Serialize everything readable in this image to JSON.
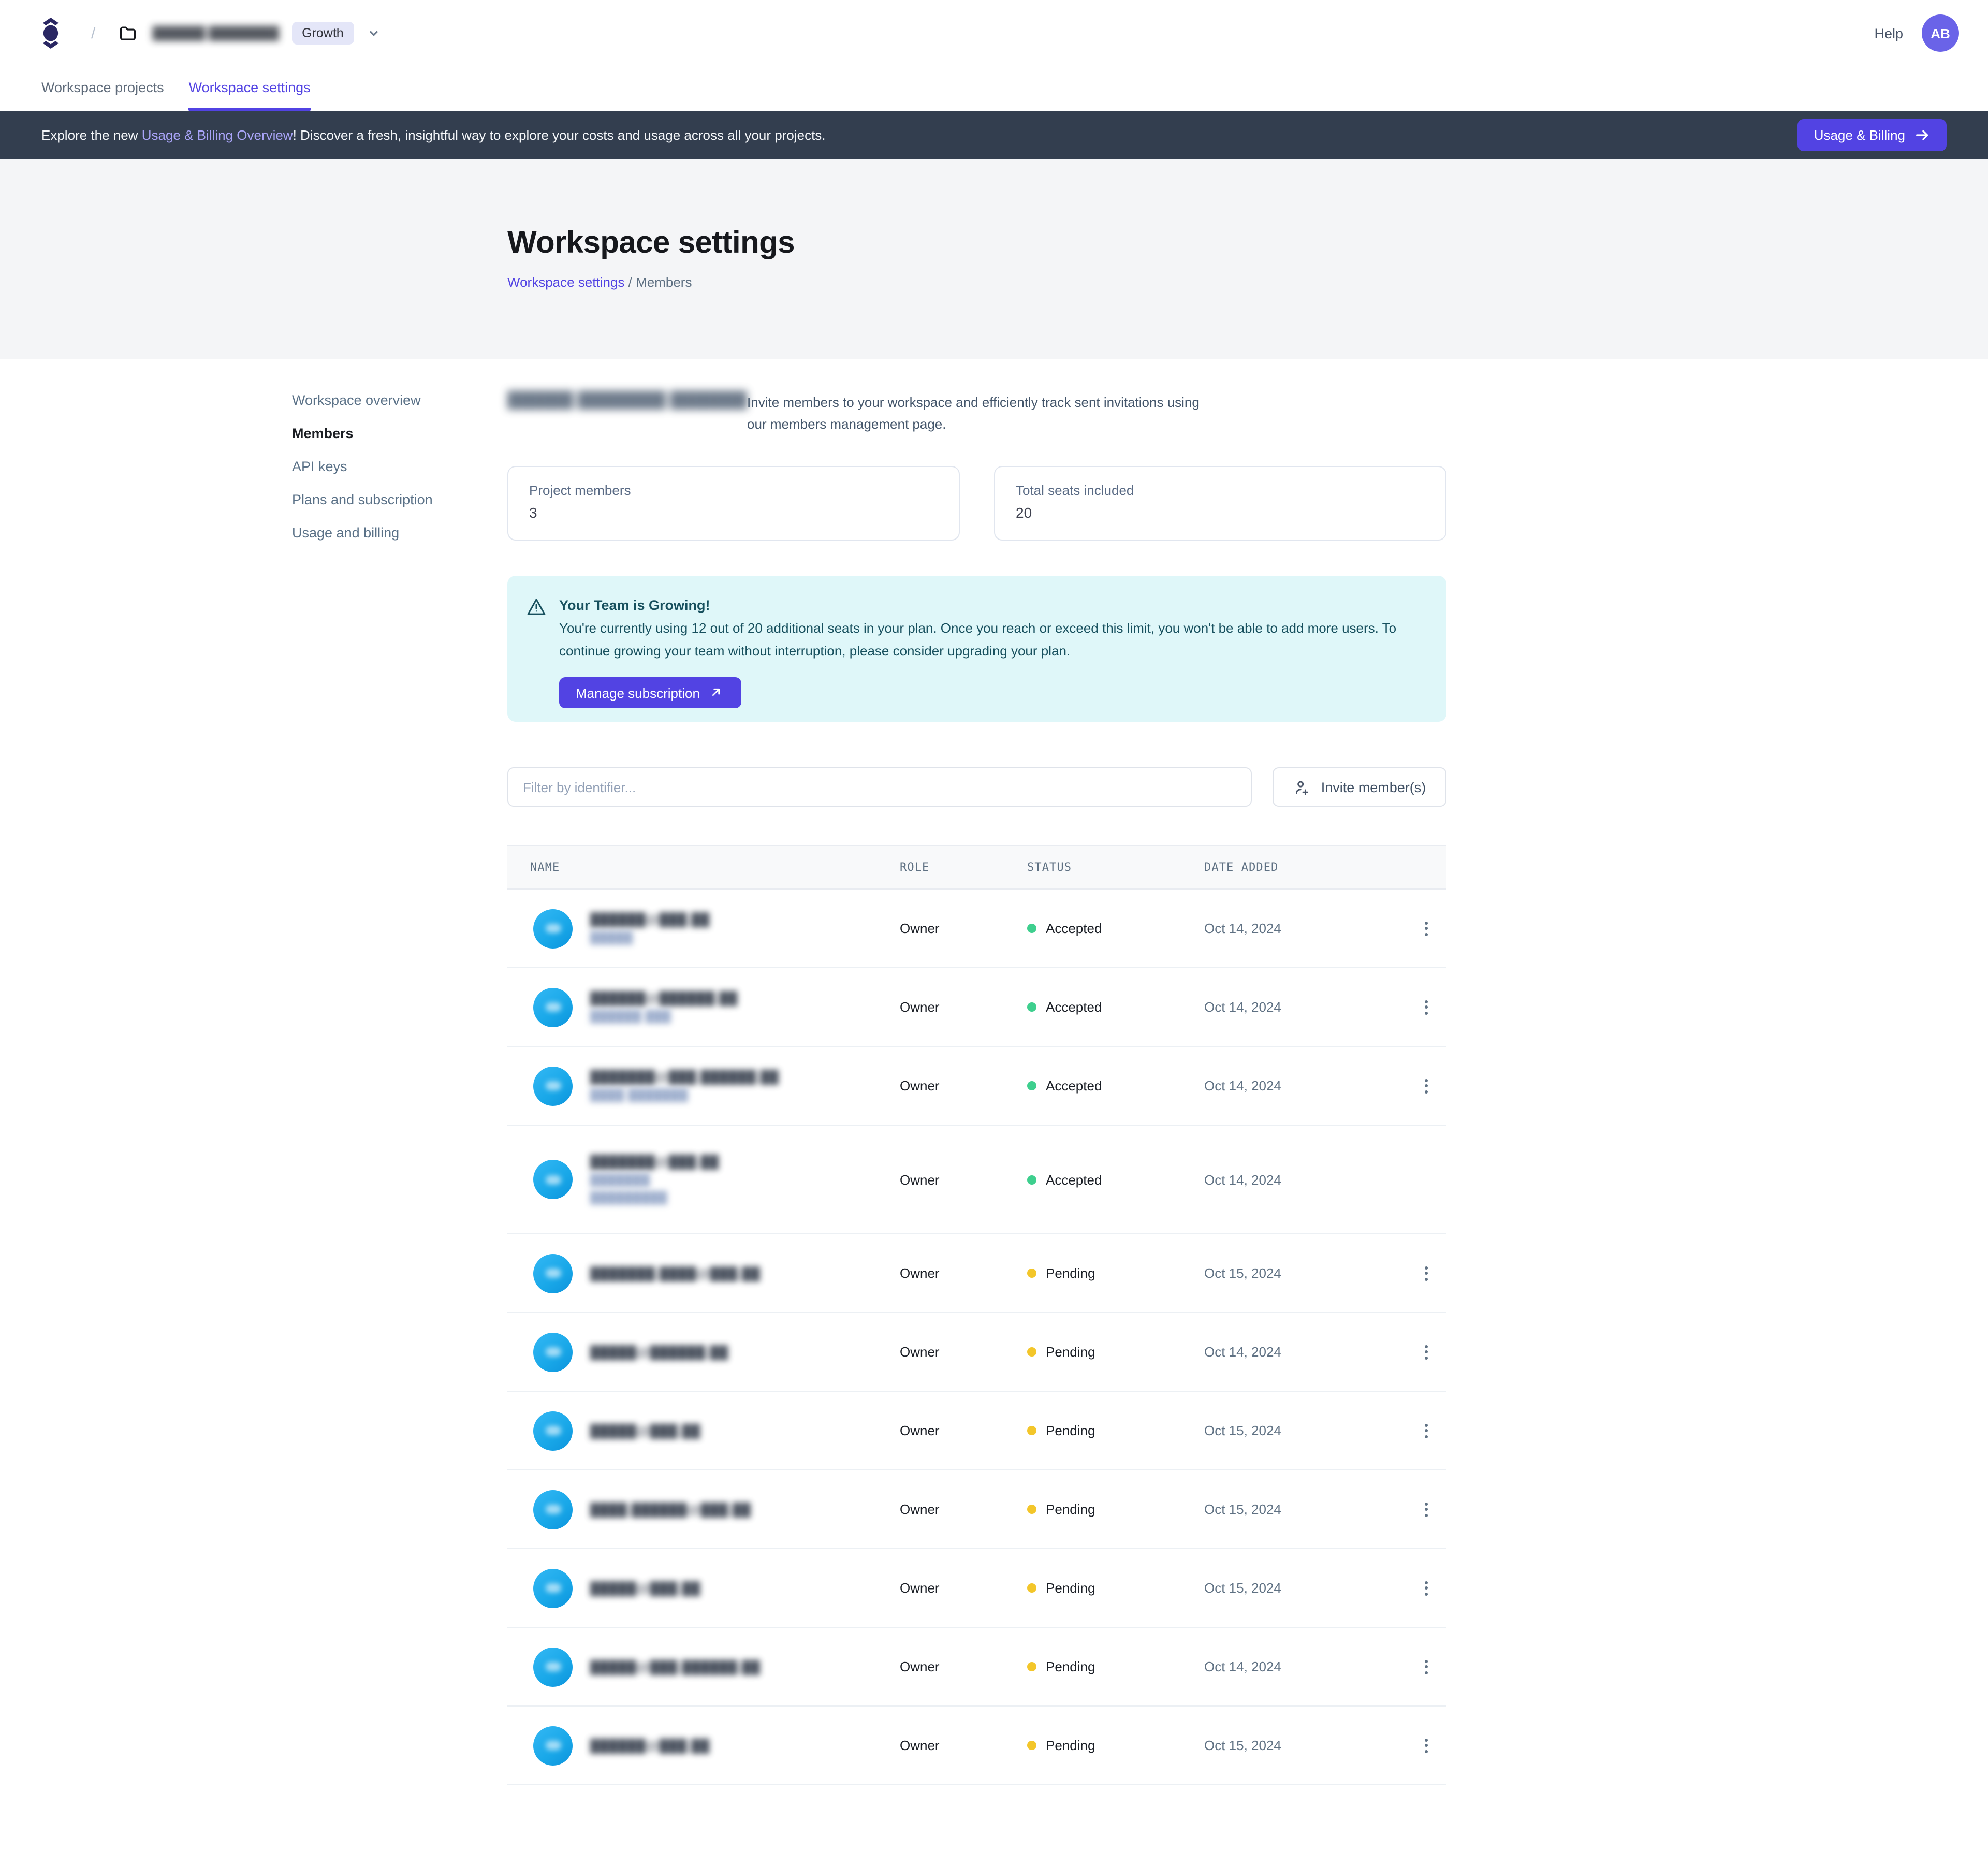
{
  "colors": {
    "accent": "#5243E3",
    "banner_bg": "#333E4F",
    "banner_link": "#A9A4F8",
    "badge_bg": "#E4E6F8",
    "alert_bg": "#DFF7F9",
    "alert_text": "#17505E",
    "dot_accepted": "#3ECF8E",
    "dot_pending": "#F3C62A",
    "avatar_user_bg": "#6A63E8",
    "avatar_member_bg": "#18A7E8"
  },
  "header": {
    "breadcrumb_separator": "/",
    "project_name_redacted": "██████ ████████",
    "plan_badge": "Growth",
    "help_label": "Help",
    "avatar_initials": "AB"
  },
  "tabs": [
    {
      "label": "Workspace projects",
      "active": false
    },
    {
      "label": "Workspace settings",
      "active": true
    }
  ],
  "banner": {
    "text_prefix": "Explore the new ",
    "link_text": "Usage & Billing Overview",
    "text_suffix": "! Discover a fresh, insightful way to explore your costs and usage across all your projects.",
    "button_label": "Usage & Billing"
  },
  "hero": {
    "title": "Workspace settings",
    "breadcrumb_link": "Workspace settings",
    "breadcrumb_divider": " / ",
    "breadcrumb_current": "Members"
  },
  "sidebar": {
    "items": [
      {
        "label": "Workspace overview",
        "active": false
      },
      {
        "label": "Members",
        "active": true
      },
      {
        "label": "API keys",
        "active": false
      },
      {
        "label": "Plans and subscription",
        "active": false
      },
      {
        "label": "Usage and billing",
        "active": false
      }
    ]
  },
  "members": {
    "heading_redacted": "██████ ████████ ███████",
    "invite_description": "Invite members to your workspace and efficiently track sent invitations using our members management page.",
    "stats": [
      {
        "label": "Project members",
        "value": "3"
      },
      {
        "label": "Total seats included",
        "value": "20"
      }
    ],
    "alert": {
      "title": "Your Team is Growing!",
      "body": "You're currently using 12 out of 20 additional seats in your plan. Once you reach or exceed this limit, you won't be able to add more users. To continue growing your team without interruption, please consider upgrading your plan.",
      "button_label": "Manage subscription"
    },
    "filter_placeholder": "Filter by identifier...",
    "invite_button": "Invite member(s)",
    "table": {
      "columns": [
        "NAME",
        "ROLE",
        "STATUS",
        "DATE ADDED"
      ],
      "rows": [
        {
          "email_redacted": "██████@███.██",
          "name_lines_redacted": [
            "█████"
          ],
          "role": "Owner",
          "status": "Accepted",
          "status_kind": "accepted",
          "date_added": "Oct 14, 2024",
          "has_menu": true,
          "tall": false
        },
        {
          "email_redacted": "██████@██████.██",
          "name_lines_redacted": [
            "██████ ███"
          ],
          "role": "Owner",
          "status": "Accepted",
          "status_kind": "accepted",
          "date_added": "Oct 14, 2024",
          "has_menu": true,
          "tall": false
        },
        {
          "email_redacted": "███████@███.██████.██",
          "name_lines_redacted": [
            "████ ███████"
          ],
          "role": "Owner",
          "status": "Accepted",
          "status_kind": "accepted",
          "date_added": "Oct 14, 2024",
          "has_menu": true,
          "tall": false
        },
        {
          "email_redacted": "███████@███.██",
          "name_lines_redacted": [
            "███████",
            "█████████"
          ],
          "role": "Owner",
          "status": "Accepted",
          "status_kind": "accepted",
          "date_added": "Oct 14, 2024",
          "has_menu": false,
          "tall": true
        },
        {
          "email_redacted": "███████.████@███.██",
          "name_lines_redacted": [],
          "role": "Owner",
          "status": "Pending",
          "status_kind": "pending",
          "date_added": "Oct 15, 2024",
          "has_menu": true,
          "tall": false
        },
        {
          "email_redacted": "█████@██████.██",
          "name_lines_redacted": [],
          "role": "Owner",
          "status": "Pending",
          "status_kind": "pending",
          "date_added": "Oct 14, 2024",
          "has_menu": true,
          "tall": false
        },
        {
          "email_redacted": "█████@███.██",
          "name_lines_redacted": [],
          "role": "Owner",
          "status": "Pending",
          "status_kind": "pending",
          "date_added": "Oct 15, 2024",
          "has_menu": true,
          "tall": false
        },
        {
          "email_redacted": "████.██████@███.██",
          "name_lines_redacted": [],
          "role": "Owner",
          "status": "Pending",
          "status_kind": "pending",
          "date_added": "Oct 15, 2024",
          "has_menu": true,
          "tall": false
        },
        {
          "email_redacted": "█████@███.██",
          "name_lines_redacted": [],
          "role": "Owner",
          "status": "Pending",
          "status_kind": "pending",
          "date_added": "Oct 15, 2024",
          "has_menu": true,
          "tall": false
        },
        {
          "email_redacted": "█████@███.██████.██",
          "name_lines_redacted": [],
          "role": "Owner",
          "status": "Pending",
          "status_kind": "pending",
          "date_added": "Oct 14, 2024",
          "has_menu": true,
          "tall": false
        },
        {
          "email_redacted": "██████@███.██",
          "name_lines_redacted": [],
          "role": "Owner",
          "status": "Pending",
          "status_kind": "pending",
          "date_added": "Oct 15, 2024",
          "has_menu": true,
          "tall": false
        }
      ]
    }
  }
}
